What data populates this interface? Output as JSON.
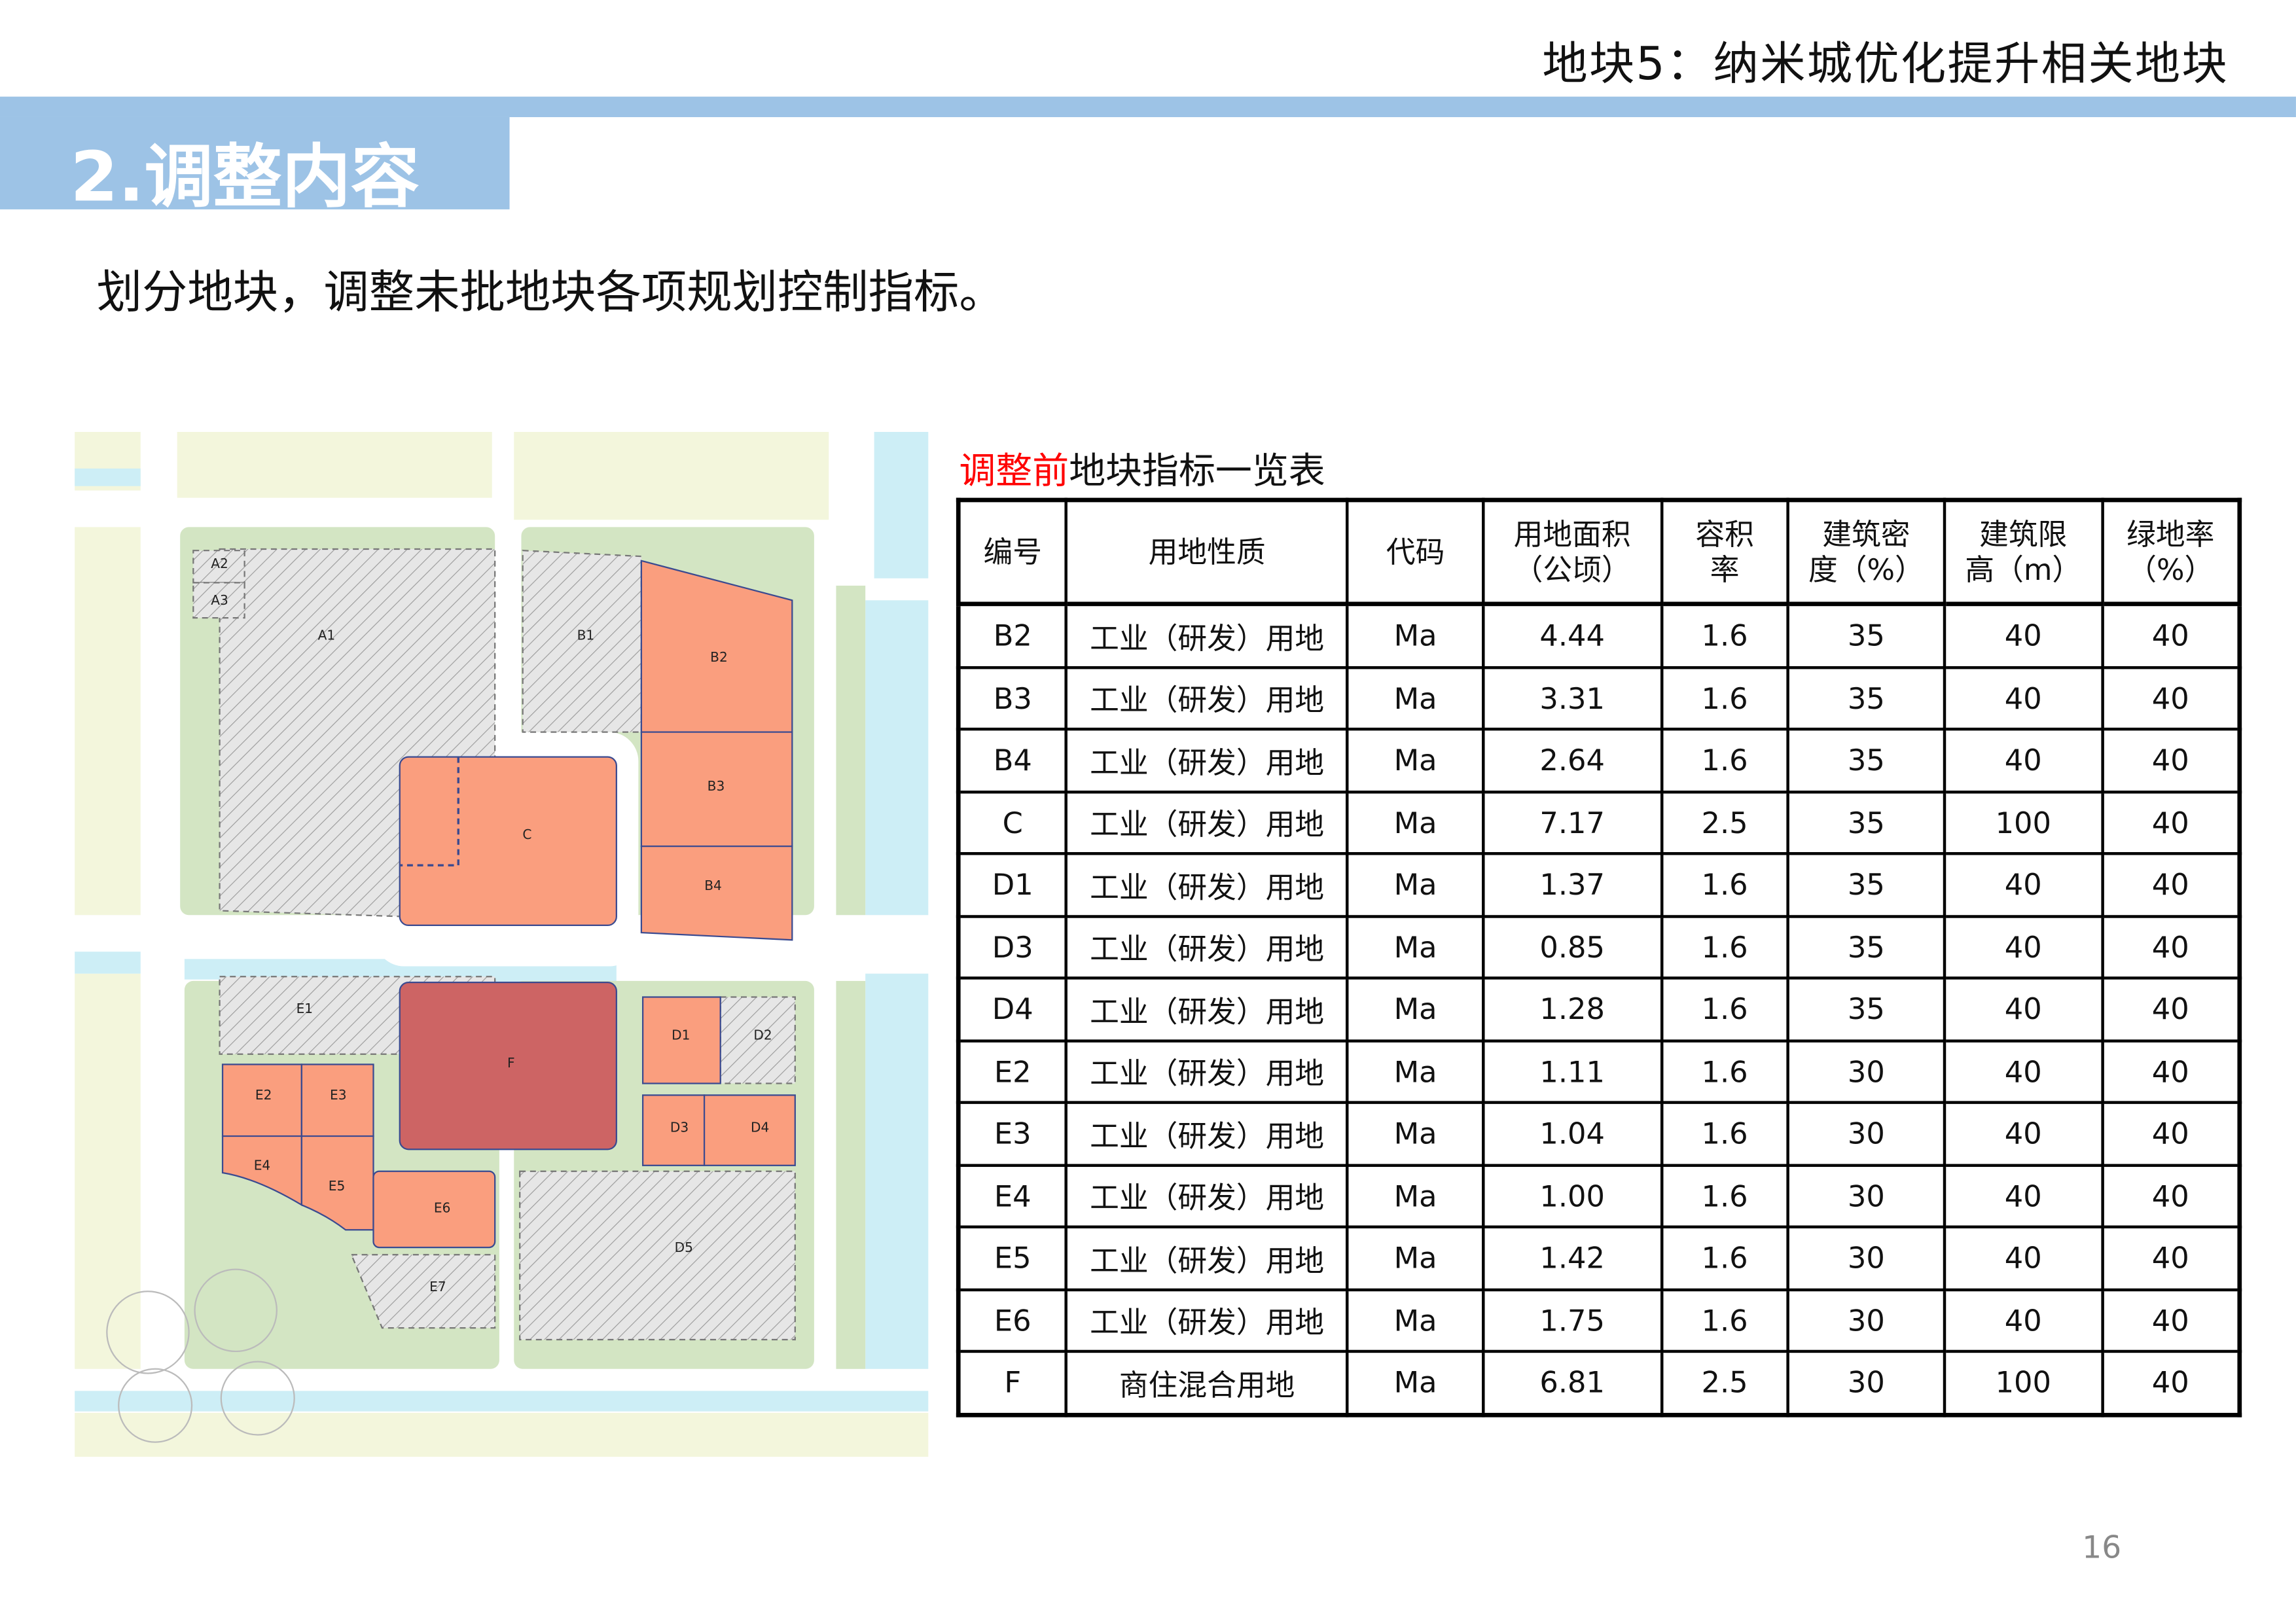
{
  "header": {
    "title": "地块5：纳米城优化提升相关地块"
  },
  "section": {
    "title": "2.调整内容"
  },
  "subtitle": "划分地块，调整未批地块各项规划控制指标。",
  "map": {
    "labels": {
      "A1": "A1",
      "A2": "A2",
      "A3": "A3",
      "B1": "B1",
      "B2": "B2",
      "B3": "B3",
      "B4": "B4",
      "C": "C",
      "D1": "D1",
      "D2": "D2",
      "D3": "D3",
      "D4": "D4",
      "D5": "D5",
      "E1": "E1",
      "E2": "E2",
      "E3": "E3",
      "E4": "E4",
      "E5": "E5",
      "E6": "E6",
      "E7": "E7",
      "F": "F"
    },
    "colors": {
      "industrial": "#fa9e7e",
      "mixed": "#cd6464",
      "hatched": "#e6e6e6",
      "green": "#d3e5c3",
      "water": "#cdeef6",
      "field": "#f3f6dc"
    }
  },
  "table": {
    "title_highlight": "调整前",
    "title_rest": "地块指标一览表",
    "headers": [
      [
        "编号",
        ""
      ],
      [
        "用地性质",
        ""
      ],
      [
        "代码",
        ""
      ],
      [
        "用地面积",
        "（公顷）"
      ],
      [
        "容积",
        "率"
      ],
      [
        "建筑密",
        "度（%）"
      ],
      [
        "建筑限",
        "高（m）"
      ],
      [
        "绿地率",
        "（%）"
      ]
    ],
    "rows": [
      [
        "B2",
        "工业（研发）用地",
        "Ma",
        "4.44",
        "1.6",
        "35",
        "40",
        "40"
      ],
      [
        "B3",
        "工业（研发）用地",
        "Ma",
        "3.31",
        "1.6",
        "35",
        "40",
        "40"
      ],
      [
        "B4",
        "工业（研发）用地",
        "Ma",
        "2.64",
        "1.6",
        "35",
        "40",
        "40"
      ],
      [
        "C",
        "工业（研发）用地",
        "Ma",
        "7.17",
        "2.5",
        "35",
        "100",
        "40"
      ],
      [
        "D1",
        "工业（研发）用地",
        "Ma",
        "1.37",
        "1.6",
        "35",
        "40",
        "40"
      ],
      [
        "D3",
        "工业（研发）用地",
        "Ma",
        "0.85",
        "1.6",
        "35",
        "40",
        "40"
      ],
      [
        "D4",
        "工业（研发）用地",
        "Ma",
        "1.28",
        "1.6",
        "35",
        "40",
        "40"
      ],
      [
        "E2",
        "工业（研发）用地",
        "Ma",
        "1.11",
        "1.6",
        "30",
        "40",
        "40"
      ],
      [
        "E3",
        "工业（研发）用地",
        "Ma",
        "1.04",
        "1.6",
        "30",
        "40",
        "40"
      ],
      [
        "E4",
        "工业（研发）用地",
        "Ma",
        "1.00",
        "1.6",
        "30",
        "40",
        "40"
      ],
      [
        "E5",
        "工业（研发）用地",
        "Ma",
        "1.42",
        "1.6",
        "30",
        "40",
        "40"
      ],
      [
        "E6",
        "工业（研发）用地",
        "Ma",
        "1.75",
        "1.6",
        "30",
        "40",
        "40"
      ],
      [
        "F",
        "商住混合用地",
        "Ma",
        "6.81",
        "2.5",
        "30",
        "100",
        "40"
      ]
    ]
  },
  "page_number": "16"
}
